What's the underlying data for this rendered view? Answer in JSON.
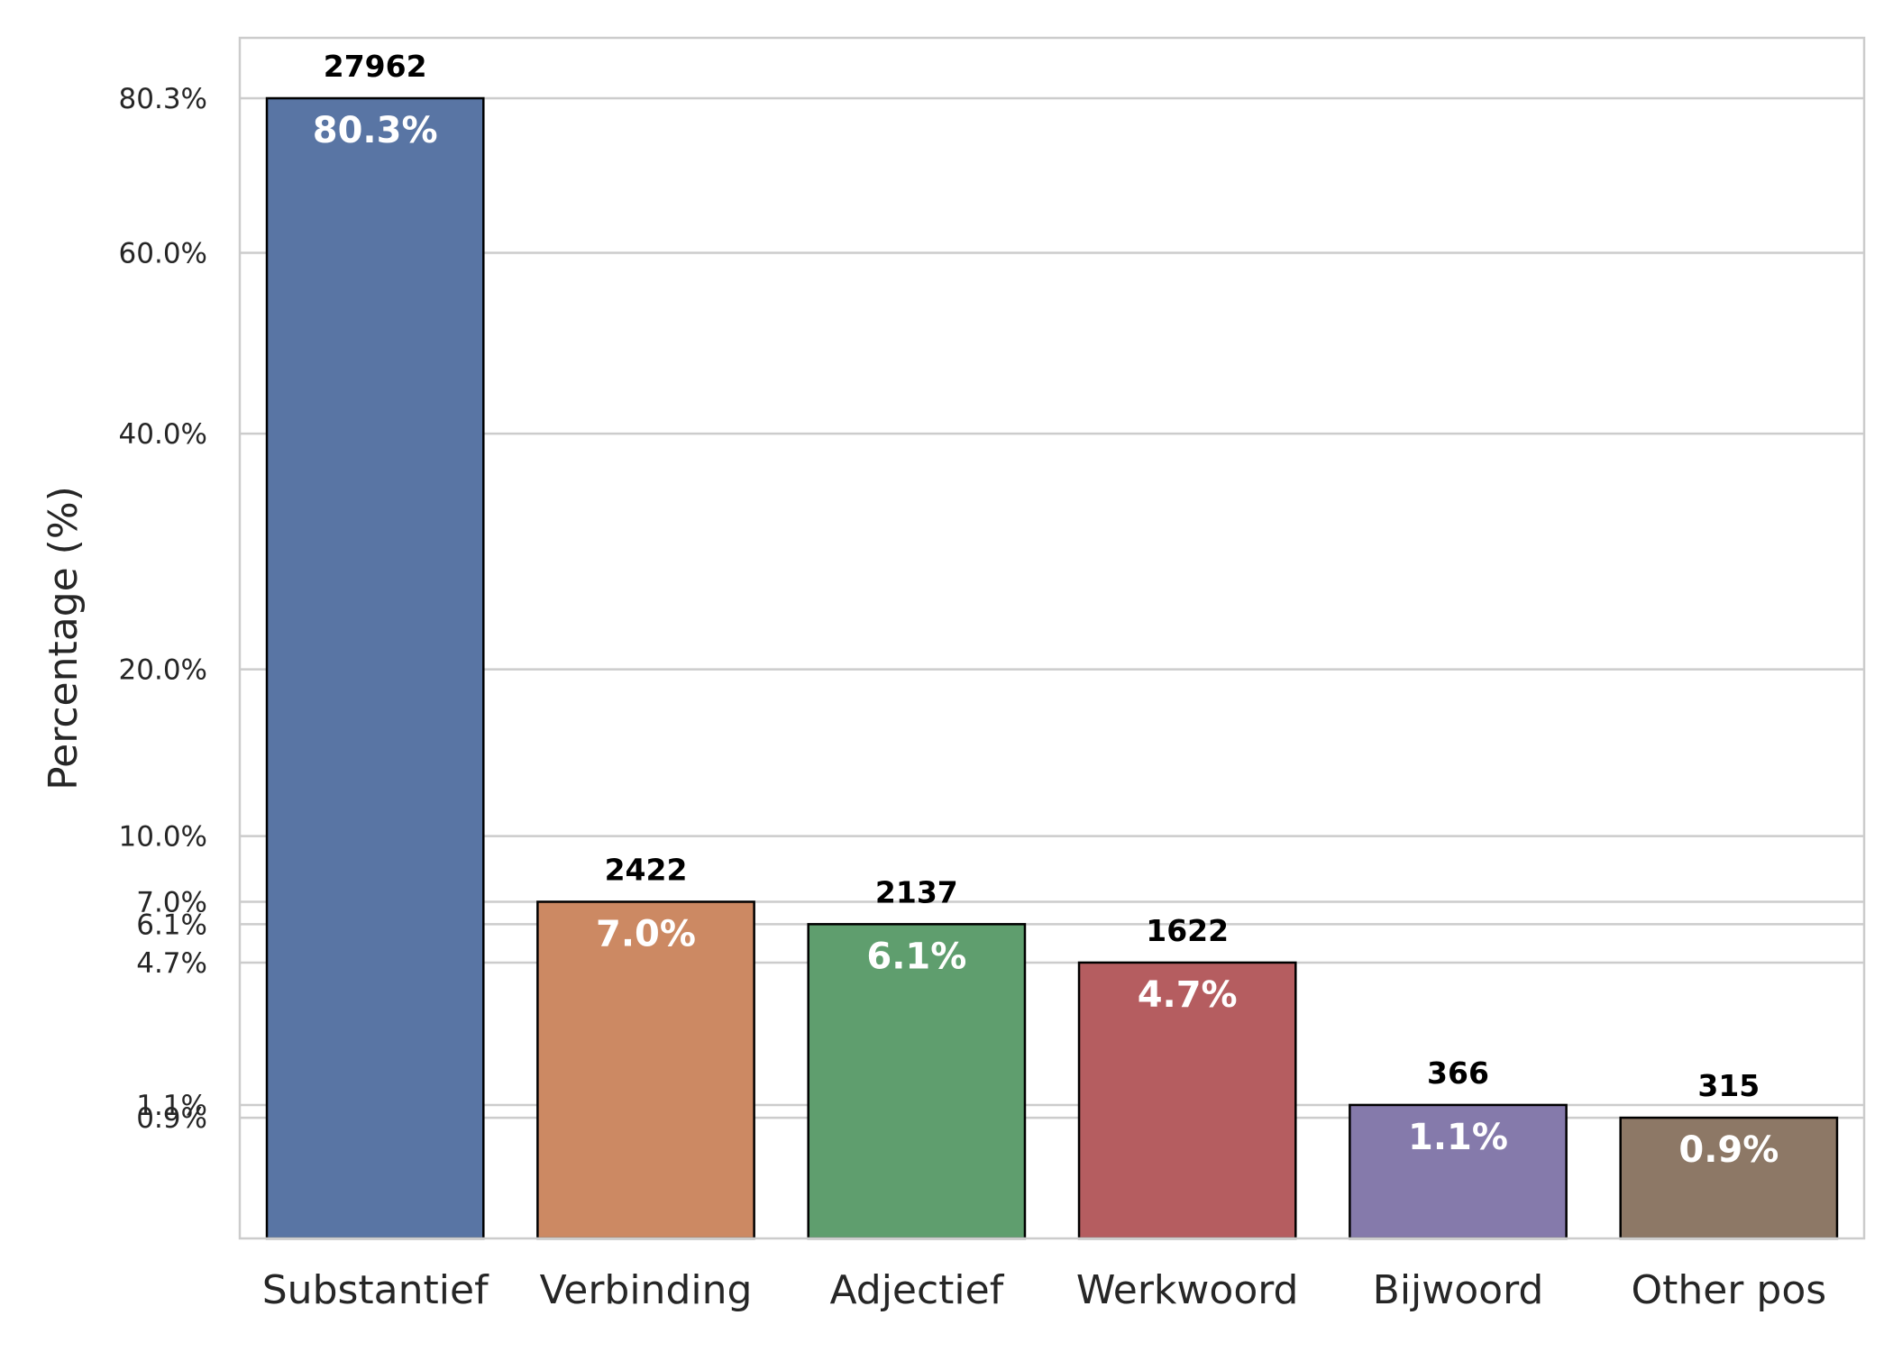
{
  "chart_data": {
    "type": "bar",
    "categories": [
      "Substantief",
      "Verbinding",
      "Adjectief",
      "Werkwoord",
      "Bijwoord",
      "Other pos"
    ],
    "values": [
      80.3,
      7.0,
      6.1,
      4.7,
      1.1,
      0.9
    ],
    "value_labels": [
      "80.3%",
      "7.0%",
      "6.1%",
      "4.7%",
      "1.1%",
      "0.9%"
    ],
    "counts": [
      "27962",
      "2422",
      "2137",
      "1622",
      "366",
      "315"
    ],
    "colors": [
      "#5975a4",
      "#cc8963",
      "#5f9e6e",
      "#b55d60",
      "#857aab",
      "#8d7866"
    ],
    "ylabel": "Percentage (%)",
    "xlabel": "",
    "yscale": "square-root",
    "ylim": [
      0,
      100
    ],
    "yticks": [
      0.9,
      1.1,
      4.7,
      6.1,
      7.0,
      10.0,
      20.0,
      40.0,
      60.0,
      80.3
    ],
    "ytick_labels": [
      "0.9%",
      "1.1%",
      "4.7%",
      "6.1%",
      "7.0%",
      "10.0%",
      "20.0%",
      "40.0%",
      "60.0%",
      "80.3%"
    ],
    "grid": "horizontal"
  }
}
